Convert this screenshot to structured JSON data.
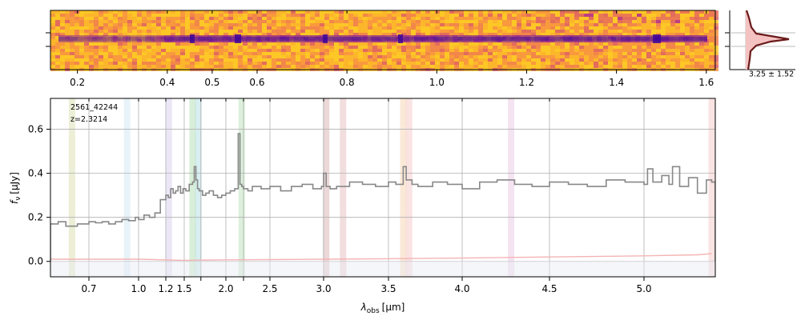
{
  "chart_data": [
    {
      "type": "heatmap",
      "description_of_axis": "2D spectrum, x = wavelength",
      "xlim": [
        0.14,
        1.62
      ],
      "xticks": [
        0.2,
        0.4,
        0.5,
        0.6,
        0.8,
        1.0,
        1.2,
        1.4,
        1.6
      ],
      "xtick_labels": [
        "0.2",
        "0.4",
        "0.5",
        "0.6",
        "0.8",
        "1.0",
        "1.2",
        "1.4",
        "1.6"
      ],
      "colormap": "plasma_r",
      "colors": {
        "background": "#fbb62c",
        "trace": "#7a10a0",
        "trace_dark": "#3b049a"
      }
    },
    {
      "type": "line",
      "label": "3.25 ± 1.52",
      "colors": {
        "line": "#6b1a1a",
        "fill": "#f5c2c2"
      }
    },
    {
      "type": "line",
      "xlabel_main": "λ",
      "xlabel_sub": "obs",
      "xlabel_unit": "[μm]",
      "ylabel_main": "f",
      "ylabel_sub": "ν",
      "ylabel_unit": "[μJy]",
      "annotation_id": "2561_42244",
      "annotation_z": "z=2.3214",
      "xlim": [
        0.6,
        5.4
      ],
      "ylim": [
        -0.07,
        0.74
      ],
      "y_ticks": [
        0.0,
        0.2,
        0.4,
        0.6
      ],
      "y_tick_labels": [
        "0.0",
        "0.2",
        "0.4",
        "0.6"
      ],
      "x_ticks": [
        0.7,
        1.0,
        1.2,
        1.5,
        1.7,
        2.0,
        2.2,
        2.5,
        3.0,
        3.5,
        4.0,
        4.5,
        5.0
      ],
      "x_tick_labels": [
        "0.7",
        "1.0",
        "1.2",
        "1.5",
        "",
        "2.0",
        "",
        "2.5",
        "3.0",
        "3.5",
        "4.0",
        "4.5",
        "5.0"
      ],
      "grid": true,
      "emission_bands": [
        {
          "x": 0.656,
          "color": "#c8d08a"
        },
        {
          "x": 0.93,
          "color": "#b9dcef"
        },
        {
          "x": 1.25,
          "color": "#c9b9e6"
        },
        {
          "x": 1.6,
          "color": "#8fcf8f"
        },
        {
          "x": 1.67,
          "color": "#8ecfd6"
        },
        {
          "x": 2.18,
          "color": "#9fd49f"
        },
        {
          "x": 3.02,
          "color": "#c89090"
        },
        {
          "x": 3.15,
          "color": "#d9a0a0"
        },
        {
          "x": 3.6,
          "color": "#f3c08f"
        },
        {
          "x": 3.64,
          "color": "#f0b0b0"
        },
        {
          "x": 4.28,
          "color": "#e0b0d6"
        },
        {
          "x": 5.38,
          "color": "#f0b0b0"
        }
      ],
      "series": [
        {
          "color": "#888888",
          "x": [
            0.6,
            0.62,
            0.64,
            0.67,
            0.7,
            0.74,
            0.78,
            0.82,
            0.86,
            0.9,
            0.94,
            0.98,
            1.0,
            1.04,
            1.08,
            1.12,
            1.16,
            1.2,
            1.24,
            1.28,
            1.32,
            1.36,
            1.4,
            1.44,
            1.48,
            1.52,
            1.56,
            1.6,
            1.62,
            1.64,
            1.66,
            1.68,
            1.72,
            1.76,
            1.8,
            1.85,
            1.9,
            1.95,
            2.0,
            2.05,
            2.1,
            2.14,
            2.16,
            2.18,
            2.2,
            2.25,
            2.3,
            2.4,
            2.5,
            2.6,
            2.7,
            2.8,
            2.9,
            2.98,
            3.0,
            3.02,
            3.05,
            3.1,
            3.2,
            3.3,
            3.4,
            3.5,
            3.55,
            3.6,
            3.62,
            3.66,
            3.7,
            3.8,
            3.9,
            4.0,
            4.1,
            4.2,
            4.3,
            4.4,
            4.5,
            4.6,
            4.7,
            4.8,
            4.9,
            5.0,
            5.02,
            5.05,
            5.1,
            5.14,
            5.16,
            5.2,
            5.25,
            5.3,
            5.35,
            5.38,
            5.4
          ],
          "y": [
            0.17,
            0.18,
            0.16,
            0.17,
            0.18,
            0.175,
            0.18,
            0.17,
            0.18,
            0.19,
            0.185,
            0.2,
            0.19,
            0.21,
            0.2,
            0.22,
            0.28,
            0.3,
            0.29,
            0.33,
            0.31,
            0.32,
            0.34,
            0.31,
            0.33,
            0.32,
            0.35,
            0.36,
            0.43,
            0.37,
            0.33,
            0.32,
            0.3,
            0.31,
            0.32,
            0.3,
            0.29,
            0.3,
            0.31,
            0.32,
            0.33,
            0.58,
            0.35,
            0.34,
            0.33,
            0.32,
            0.34,
            0.33,
            0.34,
            0.32,
            0.34,
            0.35,
            0.33,
            0.34,
            0.4,
            0.34,
            0.33,
            0.34,
            0.36,
            0.35,
            0.34,
            0.36,
            0.35,
            0.43,
            0.37,
            0.35,
            0.34,
            0.36,
            0.35,
            0.33,
            0.36,
            0.37,
            0.35,
            0.34,
            0.36,
            0.35,
            0.34,
            0.37,
            0.36,
            0.35,
            0.42,
            0.36,
            0.39,
            0.35,
            0.43,
            0.34,
            0.38,
            0.31,
            0.37,
            0.36,
            0.0
          ]
        },
        {
          "color": "#f4b4b4",
          "x": [
            0.6,
            1.0,
            1.5,
            2.0,
            2.5,
            3.0,
            3.5,
            4.0,
            4.5,
            5.0,
            5.3,
            5.38
          ],
          "y": [
            0.01,
            0.01,
            0.005,
            0.007,
            0.008,
            0.01,
            0.012,
            0.015,
            0.02,
            0.025,
            0.03,
            0.035
          ]
        }
      ]
    }
  ]
}
